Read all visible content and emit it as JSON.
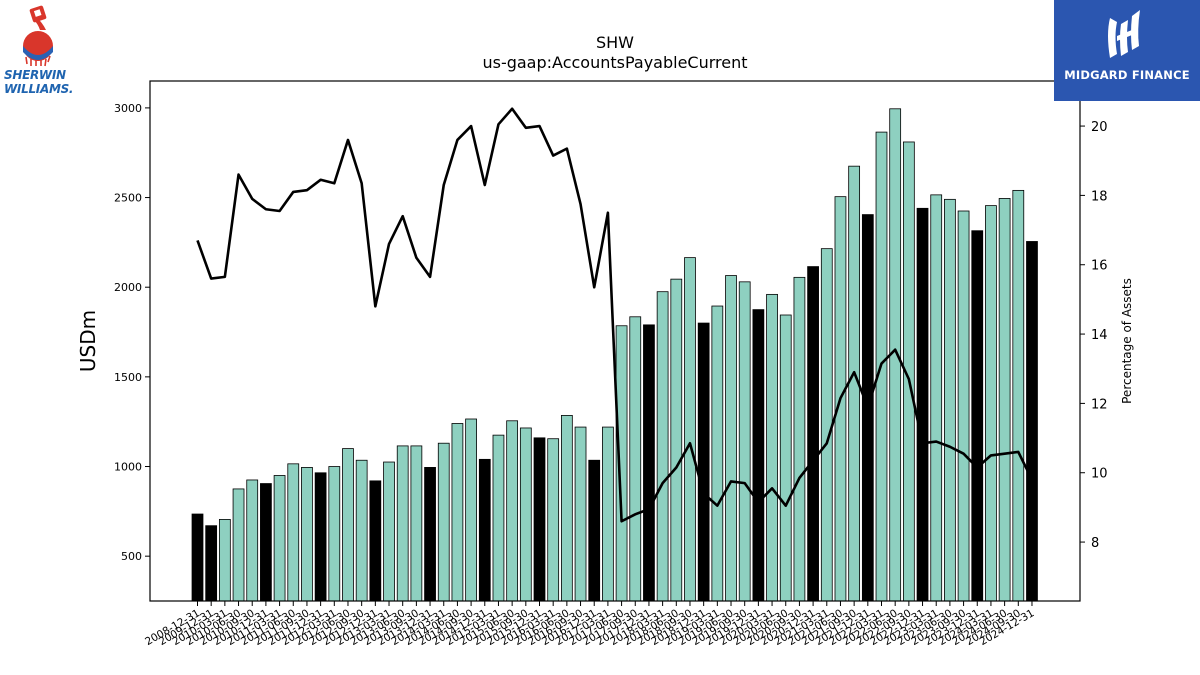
{
  "branding": {
    "left_logo_line1": "SHERWIN",
    "left_logo_line2": "WILLIAMS.",
    "left_logo_name": "sherwin-williams-logo",
    "right_logo_text": "MIDGARD FINANCE",
    "right_logo_name": "midgard-finance-logo",
    "right_logo_bg": "#2b56b0"
  },
  "chart_data": {
    "type": "bar",
    "title": "SHW",
    "subtitle": "us-gaap:AccountsPayableCurrent",
    "ylabel": "USDm",
    "y2label": "Percentage of Assets",
    "ylim": [
      250,
      3150
    ],
    "y2lim": [
      6.3,
      21.3
    ],
    "yticks": [
      500,
      1000,
      1500,
      2000,
      2500,
      3000
    ],
    "y2ticks": [
      8,
      10,
      12,
      14,
      16,
      18,
      20
    ],
    "bar_color_default": "#8ed0c0",
    "bar_color_annual": "#000000",
    "line_color": "#000000",
    "categories": [
      "2008-12-31",
      "2009-12-31",
      "2010-03-31",
      "2010-06-30",
      "2010-09-30",
      "2010-12-31",
      "2011-03-31",
      "2011-06-30",
      "2011-09-30",
      "2011-12-31",
      "2012-03-31",
      "2012-06-30",
      "2012-09-30",
      "2012-12-31",
      "2013-03-31",
      "2013-06-30",
      "2013-09-30",
      "2013-12-31",
      "2014-03-31",
      "2014-06-30",
      "2014-09-30",
      "2014-12-31",
      "2015-03-31",
      "2015-06-30",
      "2015-09-30",
      "2015-12-31",
      "2016-03-31",
      "2016-06-30",
      "2016-09-30",
      "2016-12-31",
      "2017-03-31",
      "2017-06-30",
      "2017-09-30",
      "2017-12-31",
      "2018-03-31",
      "2018-06-30",
      "2018-09-30",
      "2018-12-31",
      "2019-03-31",
      "2019-06-30",
      "2019-09-30",
      "2019-12-31",
      "2020-03-31",
      "2020-06-30",
      "2020-09-30",
      "2020-12-31",
      "2021-03-31",
      "2021-06-30",
      "2021-09-30",
      "2021-12-31",
      "2022-03-31",
      "2022-06-30",
      "2022-09-30",
      "2022-12-31",
      "2023-03-31",
      "2023-06-30",
      "2023-09-30",
      "2023-12-31",
      "2024-03-31",
      "2024-06-30",
      "2024-09-30",
      "2024-12-31"
    ],
    "series": [
      {
        "type": "bar",
        "axis": "left",
        "values": [
          735,
          670,
          705,
          875,
          925,
          905,
          950,
          1015,
          995,
          965,
          1000,
          1100,
          1035,
          920,
          1025,
          1115,
          1115,
          995,
          1130,
          1240,
          1265,
          1040,
          1175,
          1255,
          1215,
          1160,
          1155,
          1285,
          1220,
          1035,
          1220,
          1785,
          1835,
          1790,
          1975,
          2045,
          2165,
          1800,
          1895,
          2065,
          2030,
          1875,
          1960,
          1845,
          2055,
          2115,
          2215,
          2505,
          2675,
          2405,
          2865,
          2995,
          2810,
          2440,
          2515,
          2490,
          2425,
          2315,
          2455,
          2495,
          2540,
          2255
        ],
        "annual_flags": [
          true,
          true,
          false,
          false,
          false,
          true,
          false,
          false,
          false,
          true,
          false,
          false,
          false,
          true,
          false,
          false,
          false,
          true,
          false,
          false,
          false,
          true,
          false,
          false,
          false,
          true,
          false,
          false,
          false,
          true,
          false,
          false,
          false,
          true,
          false,
          false,
          false,
          true,
          false,
          false,
          false,
          true,
          false,
          false,
          false,
          true,
          false,
          false,
          false,
          true,
          false,
          false,
          false,
          true,
          false,
          false,
          false,
          true,
          false,
          false,
          false,
          true
        ]
      },
      {
        "type": "line",
        "axis": "right",
        "values": [
          16.7,
          15.6,
          15.65,
          18.6,
          17.9,
          17.6,
          17.55,
          18.1,
          18.15,
          18.45,
          18.35,
          19.6,
          18.35,
          14.8,
          16.6,
          17.4,
          16.2,
          15.65,
          18.3,
          19.6,
          20.0,
          18.3,
          20.05,
          20.5,
          19.95,
          20.0,
          19.15,
          19.35,
          17.75,
          15.35,
          17.5,
          8.6,
          8.8,
          8.95,
          9.7,
          10.15,
          10.85,
          9.4,
          9.05,
          9.75,
          9.7,
          9.15,
          9.55,
          9.05,
          9.85,
          10.35,
          10.85,
          12.15,
          12.9,
          11.9,
          13.15,
          13.55,
          12.7,
          10.85,
          10.9,
          10.75,
          10.55,
          10.15,
          10.5,
          10.55,
          10.6,
          9.8
        ]
      }
    ],
    "grid": false,
    "legend": "none"
  }
}
